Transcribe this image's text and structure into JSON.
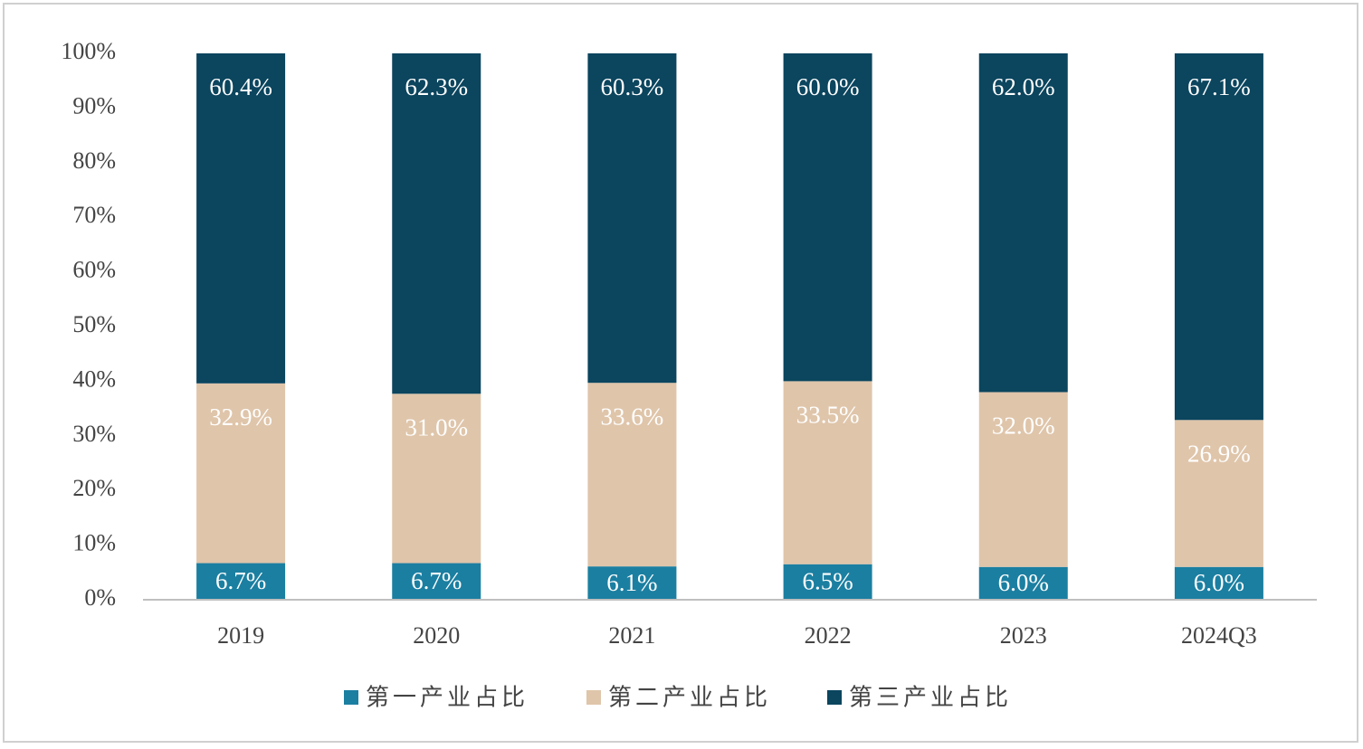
{
  "chart_data": {
    "type": "stacked_bar",
    "categories": [
      "2019",
      "2020",
      "2021",
      "2022",
      "2023",
      "2024Q3"
    ],
    "series": [
      {
        "name": "第一产业占比",
        "color": "#1b7fa1",
        "values": [
          6.7,
          6.7,
          6.1,
          6.5,
          6.0,
          6.0
        ],
        "value_labels": [
          "6.7%",
          "6.7%",
          "6.1%",
          "6.5%",
          "6.0%",
          "6.0%"
        ]
      },
      {
        "name": "第二产业占比",
        "color": "#dfc5aa",
        "values": [
          32.9,
          31.0,
          33.6,
          33.5,
          32.0,
          26.9
        ],
        "value_labels": [
          "32.9%",
          "31.0%",
          "33.6%",
          "33.5%",
          "32.0%",
          "26.9%"
        ]
      },
      {
        "name": "第三产业占比",
        "color": "#0b455e",
        "values": [
          60.4,
          62.3,
          60.3,
          60.0,
          62.0,
          67.1
        ],
        "value_labels": [
          "60.4%",
          "62.3%",
          "60.3%",
          "60.0%",
          "62.0%",
          "67.1%"
        ]
      }
    ],
    "ylim": [
      0,
      100
    ],
    "yticks": [
      {
        "value": 0,
        "label": "0%"
      },
      {
        "value": 10,
        "label": "10%"
      },
      {
        "value": 20,
        "label": "20%"
      },
      {
        "value": 30,
        "label": "30%"
      },
      {
        "value": 40,
        "label": "40%"
      },
      {
        "value": 50,
        "label": "50%"
      },
      {
        "value": 60,
        "label": "60%"
      },
      {
        "value": 70,
        "label": "70%"
      },
      {
        "value": 80,
        "label": "80%"
      },
      {
        "value": 90,
        "label": "90%"
      },
      {
        "value": 100,
        "label": "100%"
      }
    ],
    "legend": "bottom"
  }
}
